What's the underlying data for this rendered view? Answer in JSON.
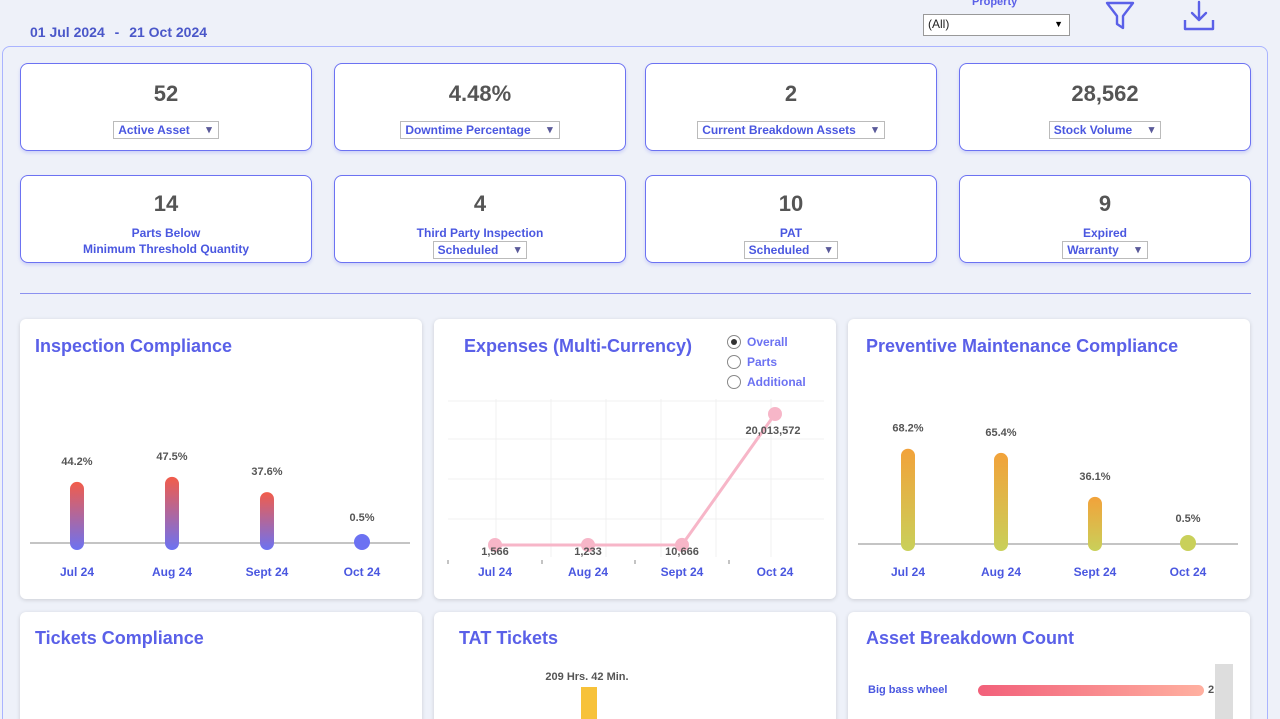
{
  "header": {
    "date_from": "01 Jul 2024",
    "date_separator": "-",
    "date_to": "21 Oct 2024",
    "property_label": "Property",
    "property_value": "(All)",
    "filter_icon": "filter-icon",
    "download_icon": "download-icon",
    "accent_color": "#5a60e8"
  },
  "kpis_row1": [
    {
      "value": "52",
      "label": "Active Asset"
    },
    {
      "value": "4.48%",
      "label": "Downtime Percentage"
    },
    {
      "value": "2",
      "label": "Current Breakdown Assets"
    },
    {
      "value": "28,562",
      "label": "Stock Volume"
    }
  ],
  "kpis_row2": [
    {
      "value": "14",
      "line1": "Parts Below",
      "line2": "Minimum Threshold Quantity"
    },
    {
      "value": "4",
      "line1": "Third Party Inspection",
      "dropdown": "Scheduled"
    },
    {
      "value": "10",
      "line1": "PAT",
      "dropdown": "Scheduled"
    },
    {
      "value": "9",
      "line1": "Expired",
      "dropdown": "Warranty"
    }
  ],
  "cards": {
    "inspection_title": "Inspection Compliance",
    "expenses_title": "Expenses (Multi-Currency)",
    "pm_title": "Preventive Maintenance Compliance",
    "tickets_title": "Tickets Compliance",
    "tat_title": "TAT Tickets",
    "breakdown_title": "Asset Breakdown Count"
  },
  "expenses_options": [
    {
      "label": "Overall",
      "selected": true
    },
    {
      "label": "Parts",
      "selected": false
    },
    {
      "label": "Additional",
      "selected": false
    }
  ],
  "chart_data": [
    {
      "type": "bar",
      "title": "Inspection Compliance",
      "categories": [
        "Jul 24",
        "Aug 24",
        "Sept 24",
        "Oct 24"
      ],
      "values": [
        44.2,
        47.5,
        37.6,
        0.5
      ],
      "value_labels": [
        "44.2%",
        "47.5%",
        "37.6%",
        "0.5%"
      ],
      "ylim": [
        0,
        50
      ],
      "colors": [
        "#f25c4a",
        "#6c72f2"
      ]
    },
    {
      "type": "line",
      "title": "Expenses (Multi-Currency)",
      "categories": [
        "Jul 24",
        "Aug 24",
        "Sept 24",
        "Oct 24"
      ],
      "values": [
        1566,
        1233,
        10666,
        20013572
      ],
      "value_labels": [
        "1,566",
        "1,233",
        "10,666",
        "20,013,572"
      ],
      "grid": true,
      "color": "#f7b6c8"
    },
    {
      "type": "bar",
      "title": "Preventive Maintenance Compliance",
      "categories": [
        "Jul 24",
        "Aug 24",
        "Sept 24",
        "Oct 24"
      ],
      "values": [
        68.2,
        65.4,
        36.1,
        0.5
      ],
      "value_labels": [
        "68.2%",
        "65.4%",
        "36.1%",
        "0.5%"
      ],
      "ylim": [
        0,
        70
      ],
      "colors": [
        "#f2a23a",
        "#c9d05a"
      ]
    },
    {
      "type": "bar",
      "title": "TAT Tickets",
      "value_labels": [
        "209 Hrs. 42 Min."
      ],
      "color": "#f7c23a"
    },
    {
      "type": "bar",
      "title": "Asset Breakdown Count",
      "categories": [
        "Big bass wheel"
      ],
      "values": [
        2
      ],
      "value_labels": [
        "2"
      ],
      "colors": [
        "#f2607a",
        "#ffb0a0"
      ]
    }
  ]
}
